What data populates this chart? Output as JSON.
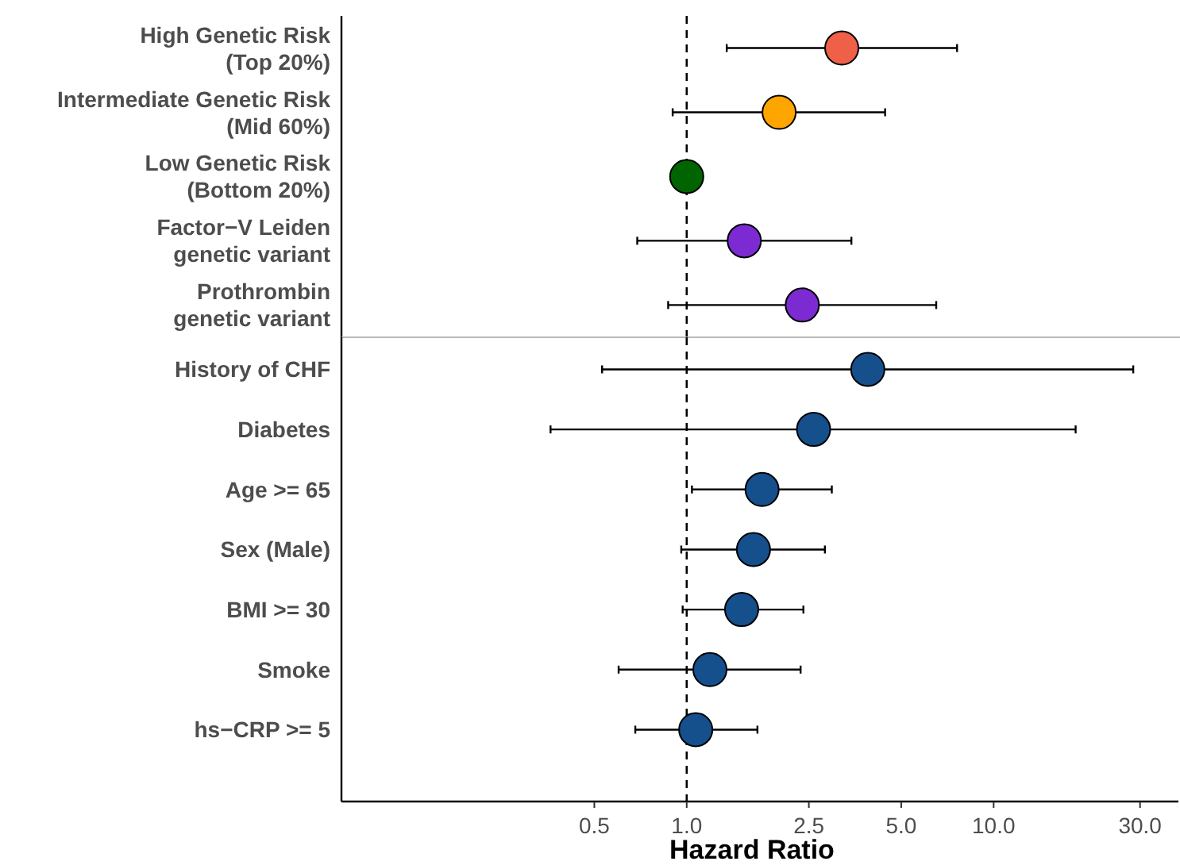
{
  "chart_data": [
    {
      "type": "scatter",
      "orientation": "horizontal",
      "log": "x",
      "grid": false,
      "marker": "circle",
      "tick_labels": "y",
      "categories": [
        "High Genetic Risk\n(Top 20%)",
        "Intermediate Genetic Risk\n(Mid 60%)",
        "Low Genetic Risk\n(Bottom 20%)",
        "Factor−V Leiden\ngenetic variant",
        "Prothrombin\ngenetic variant"
      ],
      "values": [
        3.2,
        2.0,
        1.0,
        1.54,
        2.38
      ],
      "errors": [
        [
          1.35,
          7.6
        ],
        [
          0.9,
          4.43
        ],
        null,
        [
          0.69,
          3.44
        ],
        [
          0.87,
          6.5
        ]
      ],
      "colors": [
        "#ee6047",
        "#ffa500",
        "#006400",
        "#7b2bd1",
        "#7b2bd1"
      ],
      "xlim": [
        0.075,
        40
      ],
      "ref_lines": [
        {
          "axis": "x",
          "value": 1,
          "color": "#000000",
          "line_style": "dashed"
        }
      ]
    },
    {
      "type": "scatter",
      "orientation": "horizontal",
      "xlabel": "Hazard Ratio",
      "log": "x",
      "grid": false,
      "marker": "circle",
      "categories": [
        "History of CHF",
        "Diabetes",
        "Age >= 65",
        "Sex (Male)",
        "BMI >= 30",
        "Smoke",
        "hs−CRP >= 5"
      ],
      "values": [
        3.89,
        2.59,
        1.76,
        1.65,
        1.51,
        1.19,
        1.07
      ],
      "errors": [
        [
          0.53,
          28.5
        ],
        [
          0.36,
          18.5
        ],
        [
          1.04,
          2.97
        ],
        [
          0.96,
          2.82
        ],
        [
          0.97,
          2.4
        ],
        [
          0.6,
          2.35
        ],
        [
          0.68,
          1.7
        ]
      ],
      "colors": [
        "#154f8c",
        "#154f8c",
        "#154f8c",
        "#154f8c",
        "#154f8c",
        "#154f8c",
        "#154f8c"
      ],
      "xlim": [
        0.075,
        40
      ],
      "xticks": [
        {
          "value": 0.5,
          "label": "0.5"
        },
        {
          "value": 1,
          "label": "1.0"
        },
        {
          "value": 2.5,
          "label": "2.5"
        },
        {
          "value": 5,
          "label": "5.0"
        },
        {
          "value": 10,
          "label": "10.0"
        },
        {
          "value": 30,
          "label": "30.0"
        }
      ],
      "ref_lines": [
        {
          "axis": "x",
          "value": 1,
          "color": "#000000",
          "line_style": "dashed"
        }
      ]
    }
  ]
}
